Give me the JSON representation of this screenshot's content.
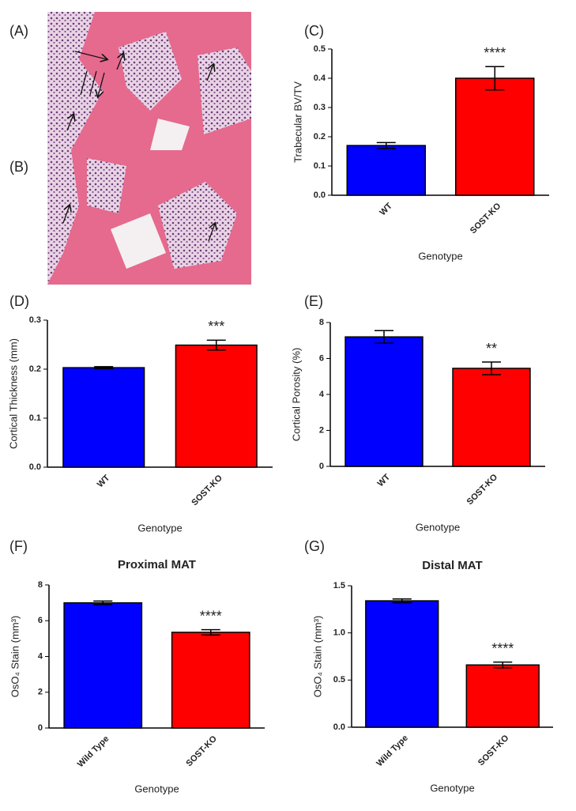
{
  "image_labels": [
    "(A)",
    "(B)"
  ],
  "chart_data": [
    {
      "type": "bar",
      "label": "(C)",
      "ylabel": "Trabecular BV/TV",
      "xlabel": "Genotype",
      "categories": [
        "WT",
        "SOST-KO"
      ],
      "values": [
        0.17,
        0.4
      ],
      "errors": [
        0.01,
        0.04
      ],
      "colors": [
        "#0000ff",
        "#ff0000"
      ],
      "annotations": [
        null,
        "****"
      ],
      "ylim": [
        0,
        0.5
      ],
      "yticks": [
        {
          "value": 0,
          "label": "0.0"
        },
        0.1,
        0.2,
        0.3,
        0.4,
        0.5
      ]
    },
    {
      "type": "bar",
      "label": "(D)",
      "ylabel": "Cortical Thickness (mm)",
      "xlabel": "Genotype",
      "categories": [
        "WT",
        "SOST-KO"
      ],
      "values": [
        0.203,
        0.249
      ],
      "errors": [
        0.002,
        0.01
      ],
      "colors": [
        "#0000ff",
        "#ff0000"
      ],
      "annotations": [
        null,
        "***"
      ],
      "ylim": [
        0,
        0.3
      ],
      "yticks": [
        {
          "value": 0,
          "label": "0.0"
        },
        0.1,
        0.2,
        0.3
      ]
    },
    {
      "type": "bar",
      "label": "(E)",
      "ylabel": "Cortical Porosity (%)",
      "xlabel": "Genotype",
      "categories": [
        "WT",
        "SOST-KO"
      ],
      "values": [
        7.2,
        5.45
      ],
      "errors": [
        0.35,
        0.35
      ],
      "colors": [
        "#0000ff",
        "#ff0000"
      ],
      "annotations": [
        null,
        "**"
      ],
      "ylim": [
        0,
        8
      ],
      "yticks": [
        0,
        2,
        4,
        6,
        8
      ]
    },
    {
      "type": "bar",
      "label": "(F)",
      "title": "Proximal MAT",
      "ylabel": "OsO₄ Stain (mm³)",
      "xlabel": "Genotype",
      "categories": [
        "Wild Type",
        "SOST-KO"
      ],
      "values": [
        7.0,
        5.35
      ],
      "errors": [
        0.1,
        0.15
      ],
      "colors": [
        "#0000ff",
        "#ff0000"
      ],
      "annotations": [
        null,
        "****"
      ],
      "ylim": [
        0,
        8
      ],
      "yticks": [
        0,
        2,
        4,
        6,
        8
      ]
    },
    {
      "type": "bar",
      "label": "(G)",
      "title": "Distal MAT",
      "ylabel": "OsO₄ Stain (mm³)",
      "xlabel": "Genotype",
      "categories": [
        "Wild Type",
        "SOST-KO"
      ],
      "values": [
        1.34,
        0.66
      ],
      "errors": [
        0.02,
        0.03
      ],
      "colors": [
        "#0000ff",
        "#ff0000"
      ],
      "annotations": [
        null,
        "****"
      ],
      "ylim": [
        0,
        1.5
      ],
      "yticks": [
        {
          "value": 0,
          "label": "0.0"
        },
        0.5,
        {
          "value": 1,
          "label": "1.0"
        },
        1.5
      ]
    }
  ]
}
